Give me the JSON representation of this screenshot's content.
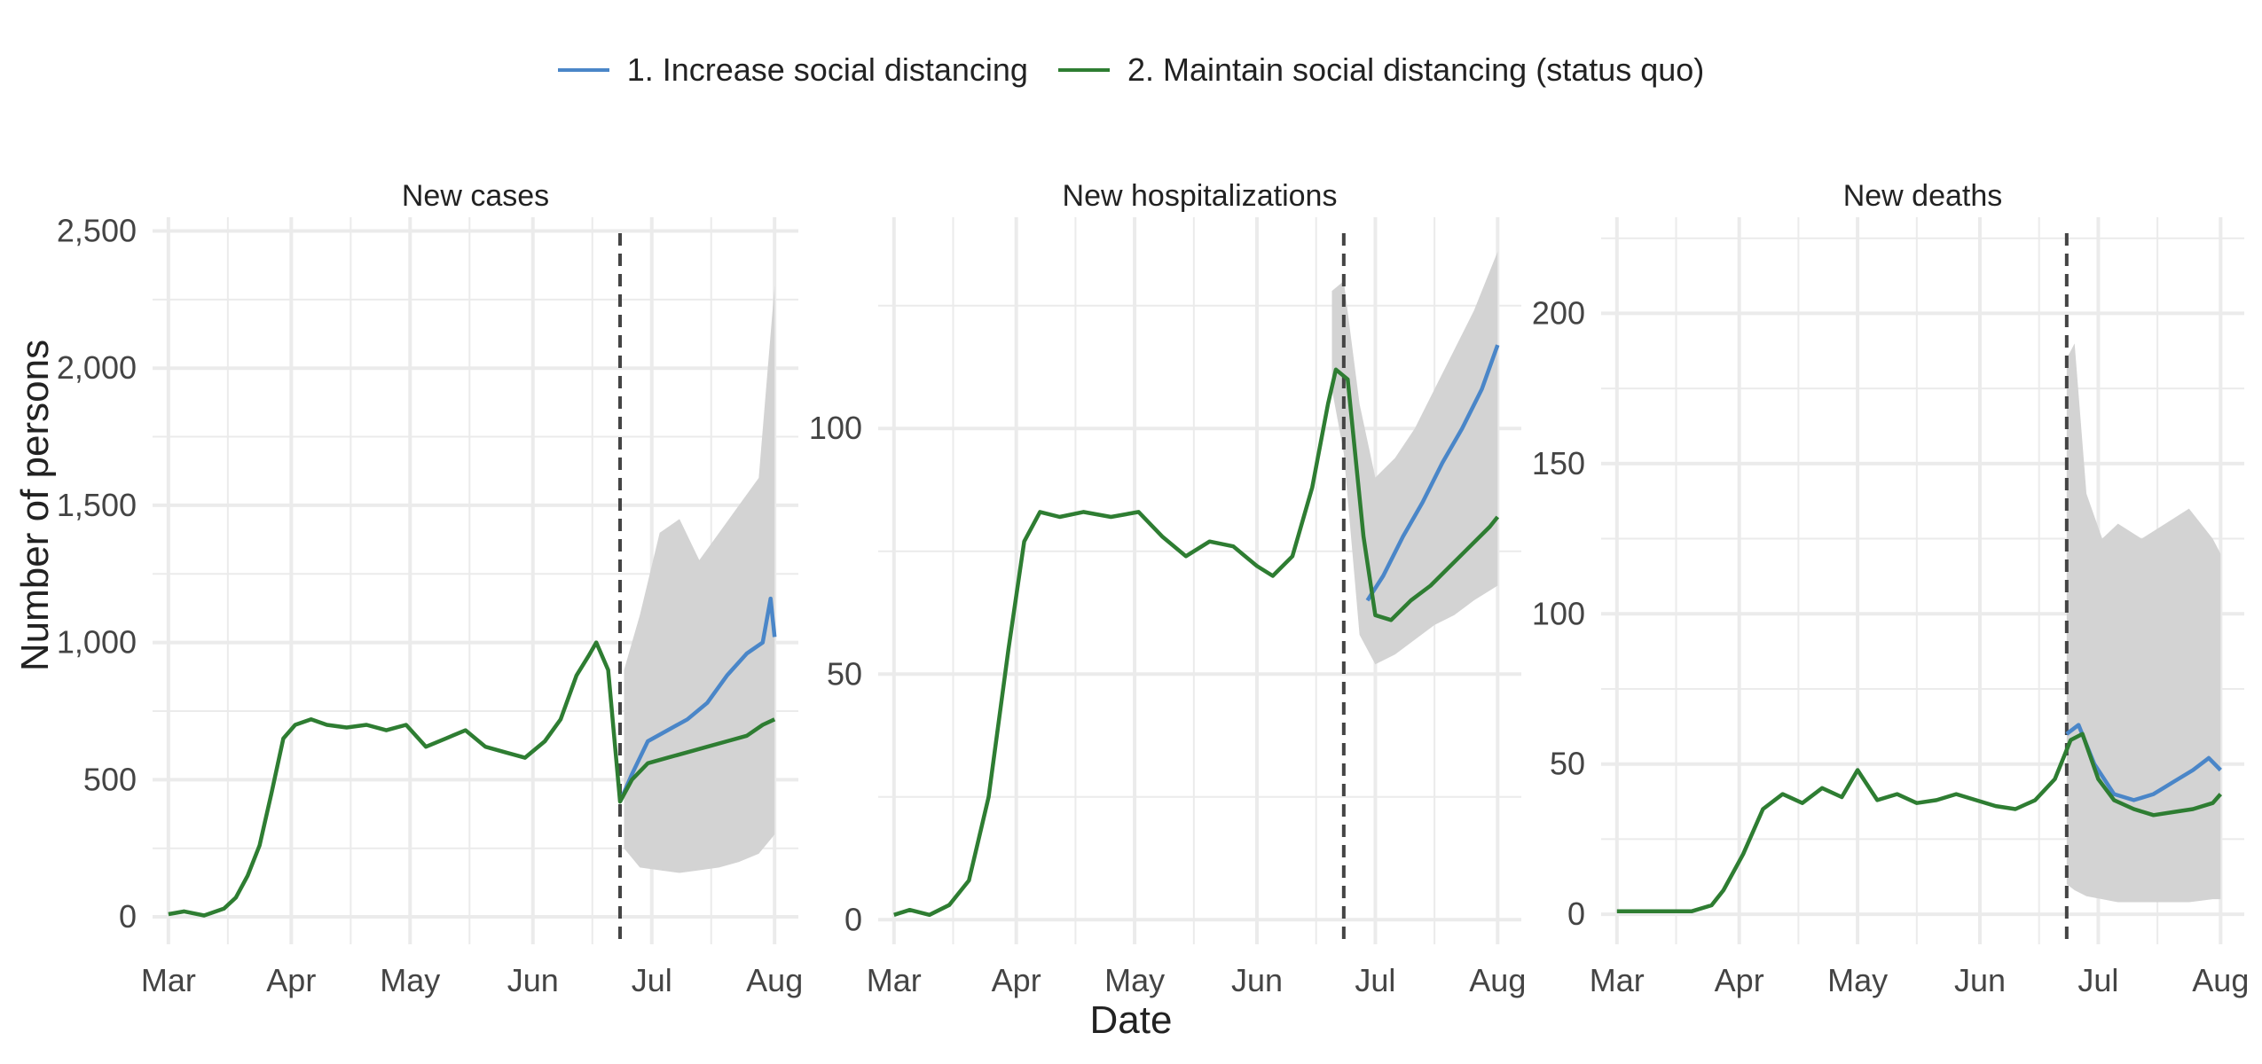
{
  "legend": {
    "items": [
      {
        "label": "1. Increase social distancing",
        "color": "#4a86c8"
      },
      {
        "label": "2. Maintain social distancing (status quo)",
        "color": "#2e7d32"
      }
    ]
  },
  "axis_labels": {
    "x": "Date",
    "y": "Number of persons"
  },
  "chart_data": [
    {
      "type": "line",
      "title": "New cases",
      "x_ticks": [
        "Mar",
        "Apr",
        "May",
        "Jun",
        "Jul",
        "Aug"
      ],
      "y_ticks": [
        "0",
        "500",
        "1,000",
        "1,500",
        "2,000",
        "2,500"
      ],
      "ylim": [
        -100,
        2550
      ],
      "xlim": [
        "2020-02-26",
        "2020-08-07"
      ],
      "intervention_date": "2020-06-23",
      "band": {
        "label": "uncertainty",
        "color": "#d3d3d3",
        "x": [
          "2020-06-24",
          "2020-06-28",
          "2020-07-03",
          "2020-07-08",
          "2020-07-13",
          "2020-07-18",
          "2020-07-23",
          "2020-07-28",
          "2020-08-01"
        ],
        "low": [
          250,
          180,
          170,
          160,
          170,
          180,
          200,
          230,
          300
        ],
        "high": [
          900,
          1100,
          1400,
          1450,
          1300,
          1400,
          1500,
          1600,
          2300
        ]
      },
      "series": [
        {
          "name": "1. Increase social distancing",
          "color": "#4a86c8",
          "x": [
            "2020-06-23",
            "2020-06-26",
            "2020-06-30",
            "2020-07-05",
            "2020-07-10",
            "2020-07-15",
            "2020-07-20",
            "2020-07-25",
            "2020-07-29",
            "2020-07-31",
            "2020-08-01"
          ],
          "y": [
            420,
            520,
            640,
            680,
            720,
            780,
            880,
            960,
            1000,
            1160,
            1020
          ]
        },
        {
          "name": "2. Maintain social distancing (status quo)",
          "color": "#2e7d32",
          "x": [
            "2020-03-01",
            "2020-03-05",
            "2020-03-10",
            "2020-03-15",
            "2020-03-18",
            "2020-03-21",
            "2020-03-24",
            "2020-03-27",
            "2020-03-30",
            "2020-04-02",
            "2020-04-06",
            "2020-04-10",
            "2020-04-15",
            "2020-04-20",
            "2020-04-25",
            "2020-04-30",
            "2020-05-05",
            "2020-05-10",
            "2020-05-15",
            "2020-05-20",
            "2020-05-25",
            "2020-05-30",
            "2020-06-04",
            "2020-06-08",
            "2020-06-12",
            "2020-06-15",
            "2020-06-17",
            "2020-06-20",
            "2020-06-23",
            "2020-06-26",
            "2020-06-30",
            "2020-07-05",
            "2020-07-10",
            "2020-07-15",
            "2020-07-20",
            "2020-07-25",
            "2020-07-29",
            "2020-08-01"
          ],
          "y": [
            10,
            20,
            5,
            30,
            70,
            150,
            260,
            450,
            650,
            700,
            720,
            700,
            690,
            700,
            680,
            700,
            620,
            650,
            680,
            620,
            600,
            580,
            640,
            720,
            880,
            950,
            1000,
            900,
            420,
            500,
            560,
            580,
            600,
            620,
            640,
            660,
            700,
            720
          ]
        }
      ]
    },
    {
      "type": "line",
      "title": "New hospitalizations",
      "x_ticks": [
        "Mar",
        "Apr",
        "May",
        "Jun",
        "Jul",
        "Aug"
      ],
      "y_ticks": [
        "0",
        "50",
        "100"
      ],
      "ylim": [
        -5,
        143
      ],
      "xlim": [
        "2020-02-26",
        "2020-08-07"
      ],
      "intervention_date": "2020-06-23",
      "band": {
        "label": "uncertainty",
        "color": "#d3d3d3",
        "x": [
          "2020-06-20",
          "2020-06-23",
          "2020-06-27",
          "2020-07-01",
          "2020-07-06",
          "2020-07-11",
          "2020-07-16",
          "2020-07-21",
          "2020-07-26",
          "2020-08-01"
        ],
        "low": [
          108,
          95,
          58,
          52,
          54,
          57,
          60,
          62,
          65,
          68
        ],
        "high": [
          128,
          130,
          105,
          90,
          94,
          100,
          108,
          116,
          124,
          136
        ]
      },
      "series": [
        {
          "name": "1. Increase social distancing",
          "color": "#4a86c8",
          "x": [
            "2020-06-29",
            "2020-07-03",
            "2020-07-08",
            "2020-07-13",
            "2020-07-18",
            "2020-07-23",
            "2020-07-28",
            "2020-08-01"
          ],
          "y": [
            65,
            70,
            78,
            85,
            93,
            100,
            108,
            117
          ]
        },
        {
          "name": "2. Maintain social distancing (status quo)",
          "color": "#2e7d32",
          "x": [
            "2020-03-01",
            "2020-03-05",
            "2020-03-10",
            "2020-03-15",
            "2020-03-20",
            "2020-03-25",
            "2020-03-30",
            "2020-04-03",
            "2020-04-07",
            "2020-04-12",
            "2020-04-18",
            "2020-04-25",
            "2020-05-02",
            "2020-05-08",
            "2020-05-14",
            "2020-05-20",
            "2020-05-26",
            "2020-06-01",
            "2020-06-05",
            "2020-06-10",
            "2020-06-15",
            "2020-06-19",
            "2020-06-21",
            "2020-06-24",
            "2020-06-28",
            "2020-07-01",
            "2020-07-05",
            "2020-07-10",
            "2020-07-15",
            "2020-07-20",
            "2020-07-25",
            "2020-07-30",
            "2020-08-01"
          ],
          "y": [
            1,
            2,
            1,
            3,
            8,
            25,
            55,
            77,
            83,
            82,
            83,
            82,
            83,
            78,
            74,
            77,
            76,
            72,
            70,
            74,
            88,
            105,
            112,
            110,
            78,
            62,
            61,
            65,
            68,
            72,
            76,
            80,
            82
          ]
        }
      ]
    },
    {
      "type": "line",
      "title": "New deaths",
      "x_ticks": [
        "Mar",
        "Apr",
        "May",
        "Jun",
        "Jul",
        "Aug"
      ],
      "y_ticks": [
        "0",
        "50",
        "100",
        "150",
        "200"
      ],
      "ylim": [
        -10,
        232
      ],
      "xlim": [
        "2020-02-26",
        "2020-08-07"
      ],
      "intervention_date": "2020-06-23",
      "band": {
        "label": "uncertainty",
        "color": "#d3d3d3",
        "x": [
          "2020-06-23",
          "2020-06-25",
          "2020-06-28",
          "2020-07-02",
          "2020-07-06",
          "2020-07-12",
          "2020-07-18",
          "2020-07-24",
          "2020-07-30",
          "2020-08-01"
        ],
        "low": [
          10,
          8,
          6,
          5,
          4,
          4,
          4,
          4,
          5,
          5
        ],
        "high": [
          185,
          190,
          140,
          125,
          130,
          125,
          130,
          135,
          125,
          120
        ]
      },
      "series": [
        {
          "name": "1. Increase social distancing",
          "color": "#4a86c8",
          "x": [
            "2020-06-23",
            "2020-06-26",
            "2020-06-30",
            "2020-07-05",
            "2020-07-10",
            "2020-07-15",
            "2020-07-20",
            "2020-07-25",
            "2020-07-29",
            "2020-08-01"
          ],
          "y": [
            60,
            63,
            50,
            40,
            38,
            40,
            44,
            48,
            52,
            48
          ]
        },
        {
          "name": "2. Maintain social distancing (status quo)",
          "color": "#2e7d32",
          "x": [
            "2020-03-01",
            "2020-03-10",
            "2020-03-20",
            "2020-03-25",
            "2020-03-28",
            "2020-04-02",
            "2020-04-07",
            "2020-04-12",
            "2020-04-17",
            "2020-04-22",
            "2020-04-27",
            "2020-05-01",
            "2020-05-06",
            "2020-05-11",
            "2020-05-16",
            "2020-05-21",
            "2020-05-26",
            "2020-05-31",
            "2020-06-05",
            "2020-06-10",
            "2020-06-15",
            "2020-06-20",
            "2020-06-24",
            "2020-06-27",
            "2020-07-01",
            "2020-07-05",
            "2020-07-10",
            "2020-07-15",
            "2020-07-20",
            "2020-07-25",
            "2020-07-30",
            "2020-08-01"
          ],
          "y": [
            1,
            1,
            1,
            3,
            8,
            20,
            35,
            40,
            37,
            42,
            39,
            48,
            38,
            40,
            37,
            38,
            40,
            38,
            36,
            35,
            38,
            45,
            58,
            60,
            45,
            38,
            35,
            33,
            34,
            35,
            37,
            40
          ]
        }
      ]
    }
  ]
}
